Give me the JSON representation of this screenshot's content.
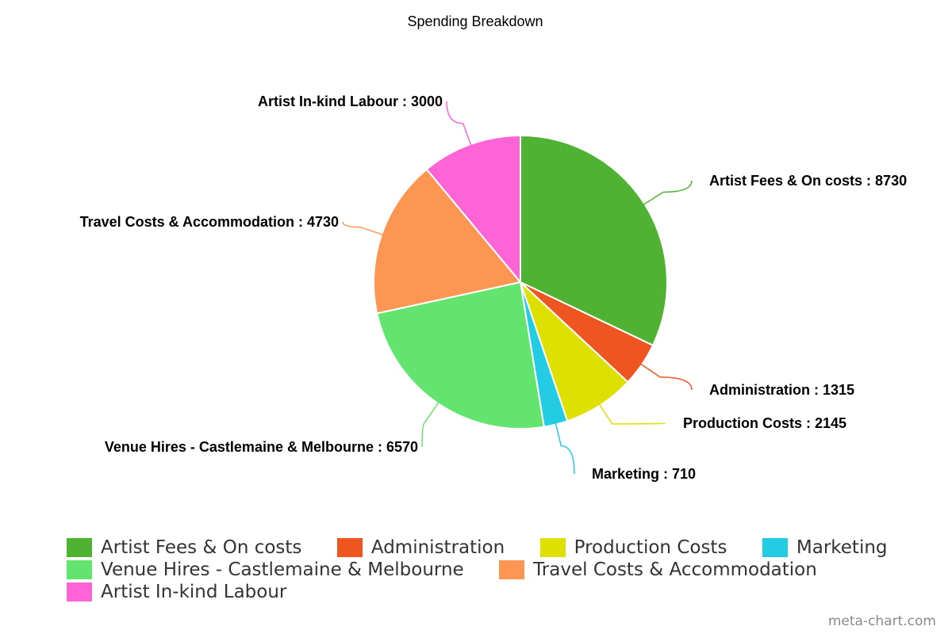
{
  "chart_data": {
    "type": "pie",
    "title": "Spending Breakdown",
    "legend_position": "bottom",
    "slices": [
      {
        "label": "Artist Fees & On costs",
        "value": 8730,
        "color": "#4fb233",
        "data_label": "Artist Fees & On costs : 8730"
      },
      {
        "label": "Administration",
        "value": 1315,
        "color": "#ef5520",
        "data_label": "Administration : 1315"
      },
      {
        "label": "Production Costs",
        "value": 2145,
        "color": "#dde000",
        "data_label": "Production Costs : 2145"
      },
      {
        "label": "Marketing",
        "value": 710,
        "color": "#22cce3",
        "data_label": "Marketing : 710"
      },
      {
        "label": "Venue Hires - Castlemaine & Melbourne",
        "value": 6570,
        "color": "#63e46f",
        "data_label": "Venue Hires - Castlemaine & Melbourne : 6570"
      },
      {
        "label": "Travel Costs & Accommodation",
        "value": 4730,
        "color": "#fd9653",
        "data_label": "Travel Costs & Accommodation : 4730"
      },
      {
        "label": "Artist In-kind Labour",
        "value": 3000,
        "color": "#fd64d6",
        "data_label": "Artist In-kind Labour : 3000"
      }
    ]
  },
  "credit": "meta-chart.com"
}
